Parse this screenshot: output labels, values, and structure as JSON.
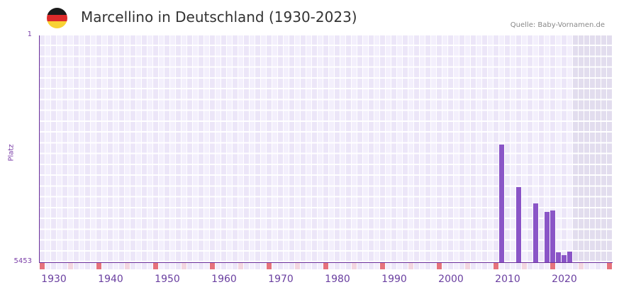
{
  "header": {
    "title": "Marcellino in Deutschland (1930-2023)",
    "source": "Quelle: Baby-Vornamen.de",
    "flag_colors": [
      "#1a1a1a",
      "#dd2a2a",
      "#f8d234"
    ]
  },
  "axis": {
    "y_label": "Platz",
    "y_top": "1",
    "y_bottom": "5453"
  },
  "colors": {
    "bar": "#8a55c7",
    "axis": "#6a2f9a",
    "marker_decade": "#e5727c",
    "marker_half": "#f3d6e0"
  },
  "chart_data": {
    "type": "bar",
    "title": "Marcellino in Deutschland (1930-2023)",
    "xlabel": "",
    "ylabel": "Platz",
    "ylim": [
      5453,
      1
    ],
    "x_range": [
      1928,
      2028
    ],
    "x_ticks": [
      "1930",
      "1940",
      "1950",
      "1960",
      "1970",
      "1980",
      "1990",
      "2000",
      "2010",
      "2020"
    ],
    "categories": [
      "2009",
      "2012",
      "2015",
      "2017",
      "2018",
      "2019",
      "2020",
      "2021"
    ],
    "values": [
      2625,
      3647,
      4039,
      4243,
      4209,
      5214,
      5282,
      5197
    ],
    "shaded_future_from": 2022,
    "grid": true,
    "legend": "none"
  }
}
